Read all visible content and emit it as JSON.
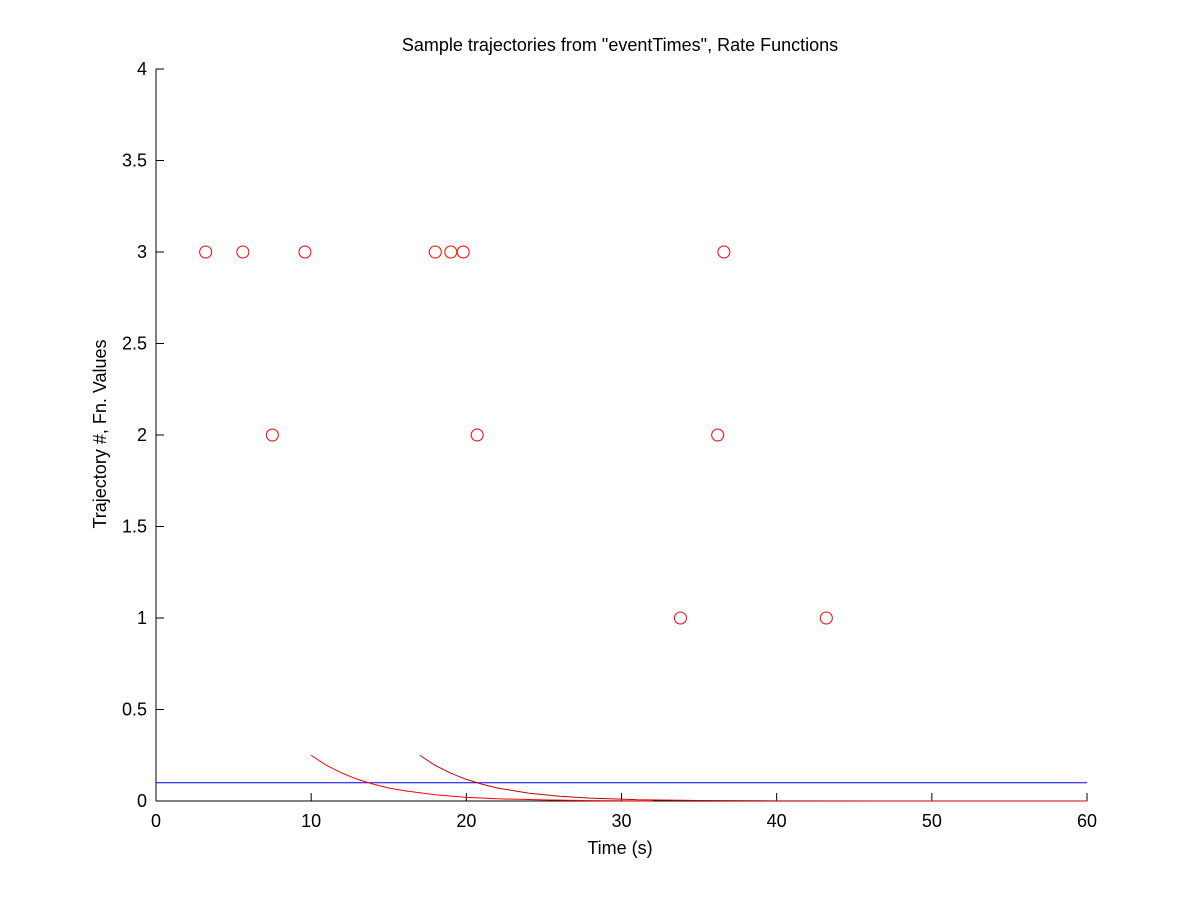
{
  "chart_data": {
    "type": "scatter",
    "title": "Sample trajectories from \"eventTimes\", Rate Functions",
    "xlabel": "Time (s)",
    "ylabel": "Trajectory #, Fn. Values",
    "xlim": [
      0,
      60
    ],
    "ylim": [
      0,
      4
    ],
    "xticks": [
      0,
      10,
      20,
      30,
      40,
      50,
      60
    ],
    "xtick_labels": [
      "0",
      "10",
      "20",
      "30",
      "40",
      "50",
      "60"
    ],
    "yticks": [
      0,
      0.5,
      1,
      1.5,
      2,
      2.5,
      3,
      3.5,
      4
    ],
    "ytick_labels": [
      "0",
      "0.5",
      "1",
      "1.5",
      "2",
      "2.5",
      "3",
      "3.5",
      "4"
    ],
    "grid": false,
    "legend": "none",
    "series": [
      {
        "marker": "circle",
        "color": "#ff0000",
        "points": [
          {
            "x": 3.2,
            "y": 3
          },
          {
            "x": 5.6,
            "y": 3
          },
          {
            "x": 9.6,
            "y": 3
          },
          {
            "x": 18.0,
            "y": 3
          },
          {
            "x": 19.0,
            "y": 3
          },
          {
            "x": 19.8,
            "y": 3
          },
          {
            "x": 36.6,
            "y": 3
          },
          {
            "x": 7.5,
            "y": 2
          },
          {
            "x": 20.7,
            "y": 2
          },
          {
            "x": 36.2,
            "y": 2
          },
          {
            "x": 33.8,
            "y": 1
          },
          {
            "x": 43.2,
            "y": 1
          }
        ]
      },
      {
        "line": "constant",
        "color": "#0000ff",
        "x": [
          0,
          60
        ],
        "y": [
          0.1,
          0.1
        ]
      },
      {
        "line": "decay",
        "color": "#ff0000",
        "x": [
          10,
          11,
          12,
          13,
          14,
          15,
          16,
          18,
          20,
          22,
          25,
          28,
          32
        ],
        "y": [
          0.25,
          0.194,
          0.152,
          0.118,
          0.092,
          0.071,
          0.056,
          0.034,
          0.02,
          0.012,
          0.006,
          0.002,
          0.0
        ]
      },
      {
        "line": "decay",
        "color": "#cc0000",
        "x": [
          17,
          18,
          19,
          20,
          21,
          22,
          24,
          26,
          28,
          31,
          35,
          40,
          50,
          60
        ],
        "y": [
          0.25,
          0.194,
          0.152,
          0.118,
          0.092,
          0.071,
          0.043,
          0.026,
          0.016,
          0.007,
          0.003,
          0.001,
          0.0,
          0.0
        ]
      }
    ]
  }
}
